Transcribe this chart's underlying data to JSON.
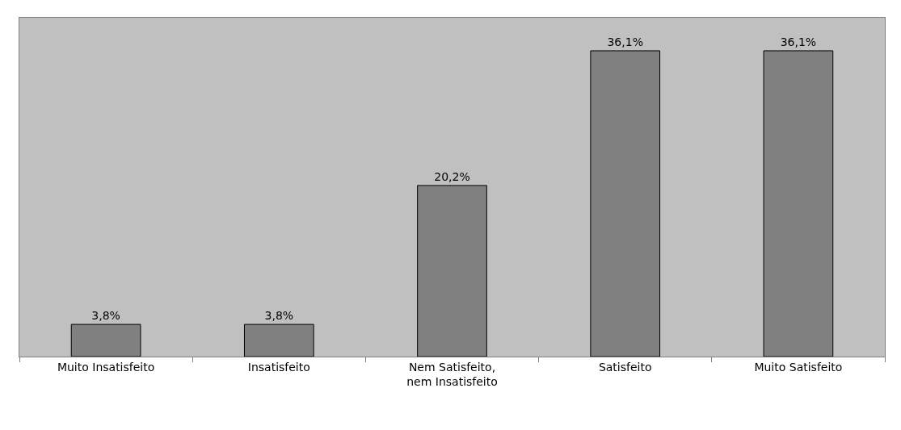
{
  "chart_data": {
    "type": "bar",
    "categories": [
      "Muito Insatisfeito",
      "Insatisfeito",
      "Nem Satisfeito,\nnem Insatisfeito",
      "Satisfeito",
      "Muito Satisfeito"
    ],
    "values": [
      3.8,
      3.8,
      20.2,
      36.1,
      36.1
    ],
    "value_labels": [
      "3,8%",
      "3,8%",
      "20,2%",
      "36,1%",
      "36,1%"
    ],
    "color": "#808080",
    "ylim": [
      0,
      40
    ],
    "grid": false,
    "legend": false,
    "tick_labels": "x"
  }
}
